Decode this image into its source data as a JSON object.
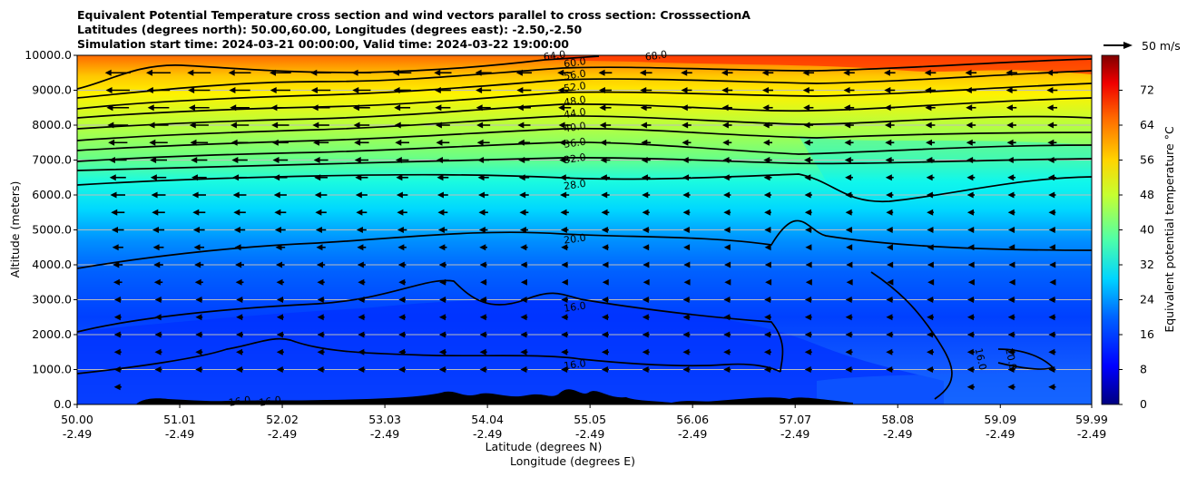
{
  "titles": {
    "line1": "Equivalent Potential Temperature cross section and wind vectors parallel to cross section: CrosssectionA",
    "line2": "Latitudes (degrees north): 50.00,60.00, Longitudes (degrees east): -2.50,-2.50",
    "line3": "Simulation start time: 2024-03-21 00:00:00, Valid time: 2024-03-22 19:00:00"
  },
  "chart_data": {
    "type": "heatmap",
    "title": "Equivalent Potential Temperature cross section and wind vectors parallel to cross section: CrosssectionA",
    "xlabel": "Latitude (degrees N)",
    "xlabel2": "Longitude (degrees E)",
    "ylabel": "Altitude (meters)",
    "xlim": [
      50.0,
      59.99
    ],
    "ylim": [
      0,
      10000
    ],
    "x_ticks": [
      {
        "lat": "50.00",
        "lon": "-2.49",
        "value": 50.0
      },
      {
        "lat": "51.01",
        "lon": "-2.49",
        "value": 51.01
      },
      {
        "lat": "52.02",
        "lon": "-2.49",
        "value": 52.02
      },
      {
        "lat": "53.03",
        "lon": "-2.49",
        "value": 53.03
      },
      {
        "lat": "54.04",
        "lon": "-2.49",
        "value": 54.04
      },
      {
        "lat": "55.05",
        "lon": "-2.49",
        "value": 55.05
      },
      {
        "lat": "56.06",
        "lon": "-2.49",
        "value": 56.06
      },
      {
        "lat": "57.07",
        "lon": "-2.49",
        "value": 57.07
      },
      {
        "lat": "58.08",
        "lon": "-2.49",
        "value": 58.08
      },
      {
        "lat": "59.09",
        "lon": "-2.49",
        "value": 59.09
      },
      {
        "lat": "59.99",
        "lon": "-2.49",
        "value": 59.99
      }
    ],
    "y_ticks": [
      {
        "label": "0.0",
        "value": 0
      },
      {
        "label": "1000.0",
        "value": 1000
      },
      {
        "label": "2000.0",
        "value": 2000
      },
      {
        "label": "3000.0",
        "value": 3000
      },
      {
        "label": "4000.0",
        "value": 4000
      },
      {
        "label": "5000.0",
        "value": 5000
      },
      {
        "label": "6000.0",
        "value": 6000
      },
      {
        "label": "7000.0",
        "value": 7000
      },
      {
        "label": "8000.0",
        "value": 8000
      },
      {
        "label": "9000.0",
        "value": 9000
      },
      {
        "label": "10000.0",
        "value": 10000
      }
    ],
    "colorbar": {
      "label": "Equivalent potential temperature $^\\circ$C",
      "label_display": "Equivalent potential temperature °C",
      "min": 0,
      "max": 80,
      "ticks": [
        "0",
        "8",
        "16",
        "24",
        "32",
        "40",
        "48",
        "56",
        "64",
        "72"
      ]
    },
    "contour_levels_labeled": [
      {
        "value": 16.0,
        "label": "16.0",
        "approx_lat": 54.9,
        "approx_alt": 2800
      },
      {
        "value": 16.0,
        "label": "16.0",
        "approx_lat": 54.9,
        "approx_alt": 1150
      },
      {
        "value": 20.0,
        "label": "20.0",
        "approx_lat": 54.9,
        "approx_alt": 4750
      },
      {
        "value": 28.0,
        "label": "28.0",
        "approx_lat": 54.9,
        "approx_alt": 6300
      },
      {
        "value": 32.0,
        "label": "32.0",
        "approx_lat": 54.9,
        "approx_alt": 7050
      },
      {
        "value": 36.0,
        "label": "36.0",
        "approx_lat": 54.9,
        "approx_alt": 7500
      },
      {
        "value": 40.0,
        "label": "40.0",
        "approx_lat": 54.9,
        "approx_alt": 7950
      },
      {
        "value": 44.0,
        "label": "44.0",
        "approx_lat": 54.9,
        "approx_alt": 8350
      },
      {
        "value": 48.0,
        "label": "48.0",
        "approx_lat": 54.9,
        "approx_alt": 8700
      },
      {
        "value": 52.0,
        "label": "52.0",
        "approx_lat": 54.9,
        "approx_alt": 9100
      },
      {
        "value": 56.0,
        "label": "56.0",
        "approx_lat": 54.9,
        "approx_alt": 9450
      },
      {
        "value": 60.0,
        "label": "60.0",
        "approx_lat": 54.9,
        "approx_alt": 9800
      },
      {
        "value": 64.0,
        "label": "64.0",
        "approx_lat": 54.7,
        "approx_alt": 10000
      },
      {
        "value": 68.0,
        "label": "68.0",
        "approx_lat": 55.7,
        "approx_alt": 10000
      },
      {
        "value": 20.0,
        "label": "20.0",
        "approx_lat": 59.2,
        "approx_alt": 1300
      },
      {
        "value": 16.0,
        "label": "16.0",
        "approx_lat": 58.9,
        "approx_alt": 1300
      },
      {
        "value": 16.0,
        "label": "16.0",
        "approx_lat": 51.6,
        "approx_alt": 100
      },
      {
        "value": 16.0,
        "label": "16.0",
        "approx_lat": 51.9,
        "approx_alt": 100
      }
    ],
    "wind_reference": {
      "label": "50 m/s",
      "value": 50
    },
    "wind_direction": "southward (toward lower latitude), strongest near 9000 m over 50-52N",
    "terrain": "black filled orography below ~400 m between 50.5N and 58.5N"
  }
}
